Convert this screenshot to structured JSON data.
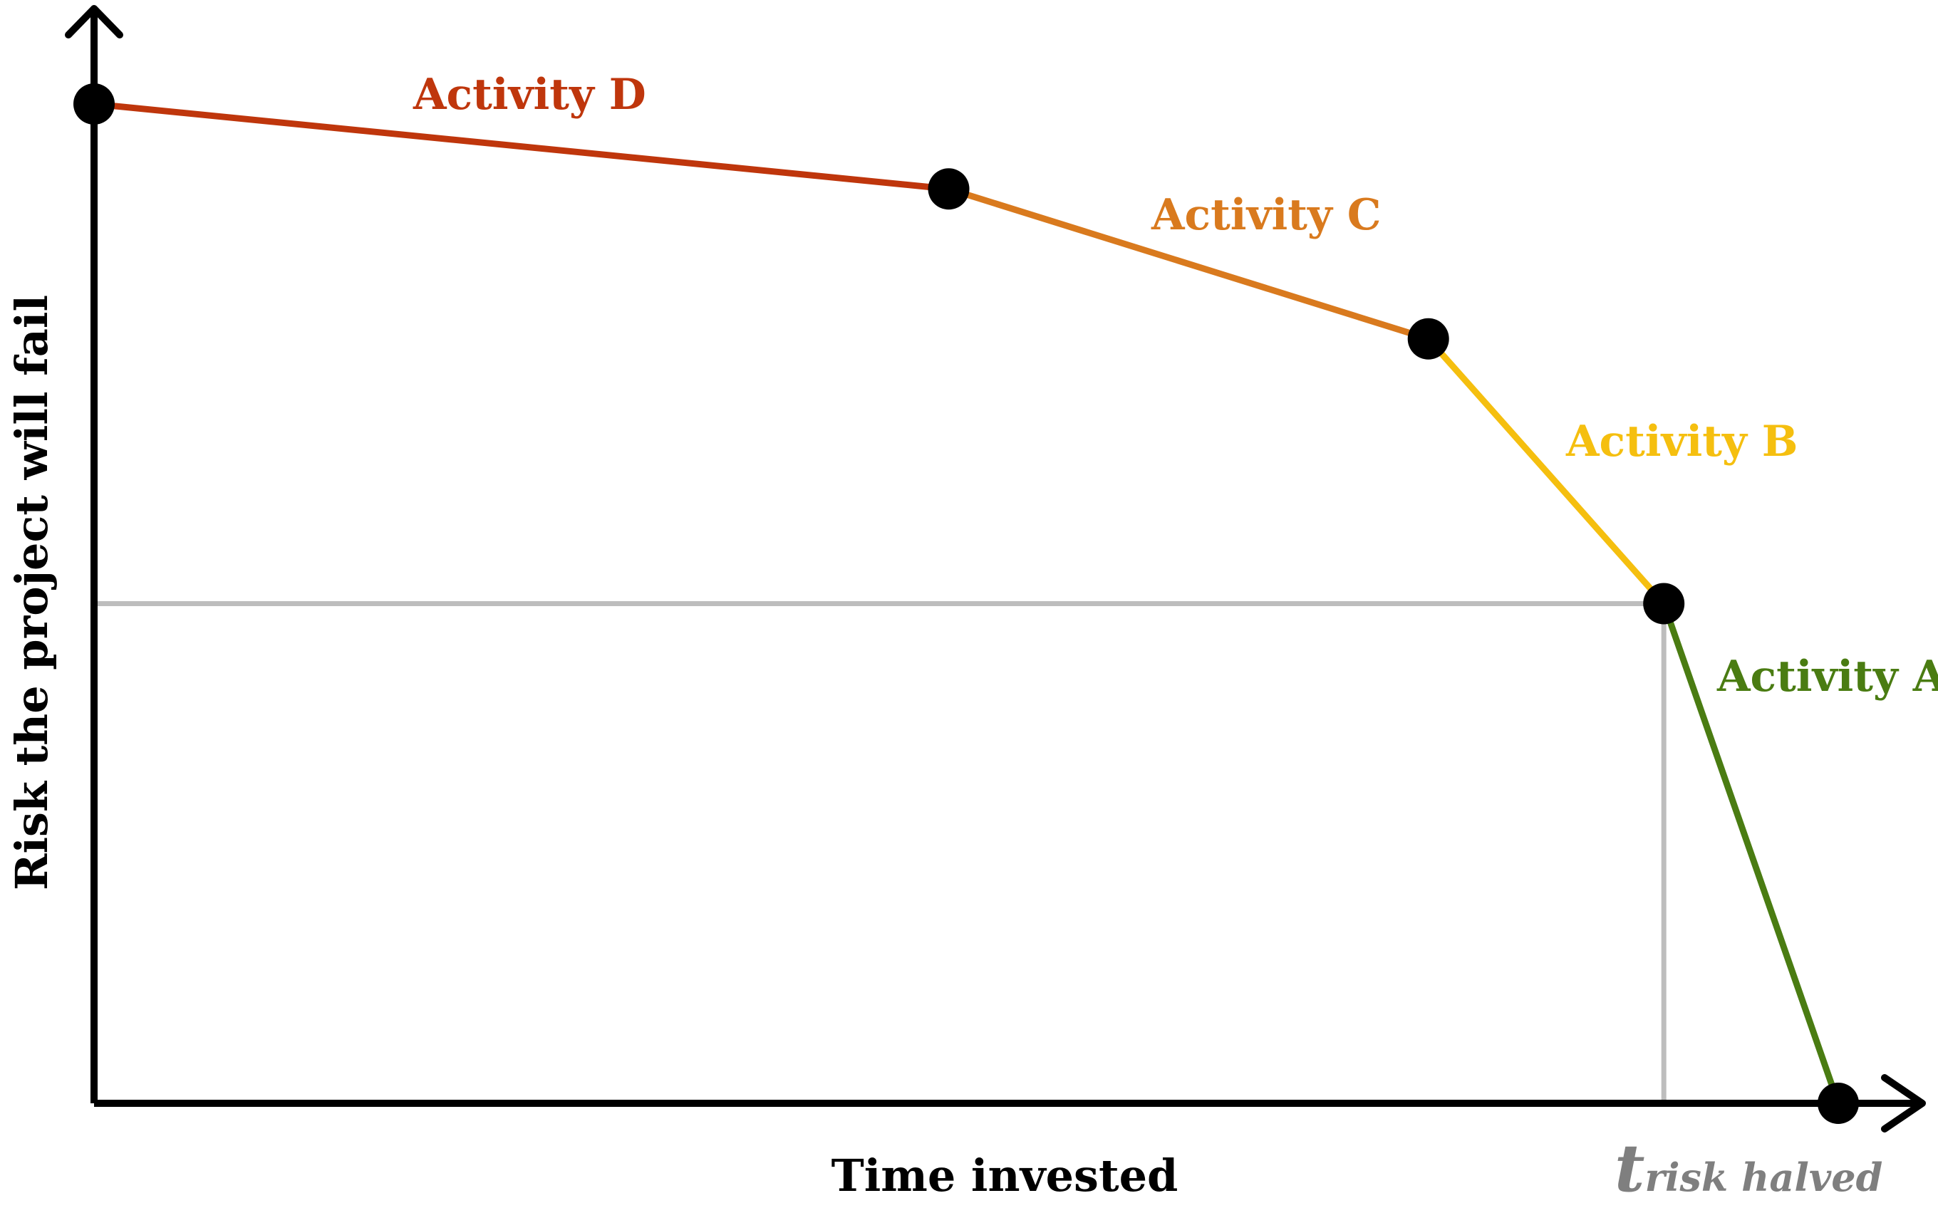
{
  "chart_data": {
    "type": "line",
    "xlabel": "Time invested",
    "ylabel": "Risk the project will fail",
    "grid": false,
    "ticks": "none",
    "points": [
      {
        "x": 0,
        "y": 100
      },
      {
        "x": 49,
        "y": 91.5
      },
      {
        "x": 76.5,
        "y": 76.5
      },
      {
        "x": 90,
        "y": 50
      },
      {
        "x": 100,
        "y": 0
      }
    ],
    "segments": [
      {
        "name": "Activity D",
        "from": 0,
        "to": 1,
        "color": "#bf360c"
      },
      {
        "name": "Activity C",
        "from": 1,
        "to": 2,
        "color": "#d97a1e"
      },
      {
        "name": "Activity B",
        "from": 2,
        "to": 3,
        "color": "#f5bf0f"
      },
      {
        "name": "Activity A",
        "from": 3,
        "to": 4,
        "color": "#4a7c12"
      }
    ],
    "reference": {
      "y": 50,
      "x": 90,
      "label_main": "t",
      "label_sub": "risk halved",
      "color": "#bdbdbd",
      "label_color": "#7f7f7f"
    },
    "xlim": [
      0,
      100
    ],
    "ylim": [
      0,
      100
    ]
  }
}
